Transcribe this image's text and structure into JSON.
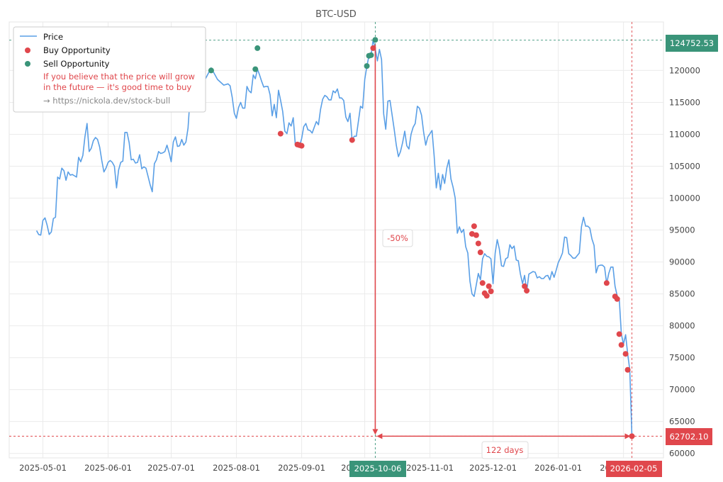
{
  "chart_data": {
    "type": "line",
    "title": "BTC-USD",
    "x_ticks": [
      "2025-05-01",
      "2025-06-01",
      "2025-07-01",
      "2025-08-01",
      "2025-09-01",
      "2025-10-01",
      "2025-11-01",
      "2025-12-01",
      "2026-01-01",
      "2026-02-01"
    ],
    "y_ticks": [
      60000,
      65000,
      70000,
      75000,
      80000,
      85000,
      90000,
      95000,
      100000,
      105000,
      110000,
      115000,
      120000
    ],
    "y_range": [
      59300,
      127600
    ],
    "x_range": [
      "2025-04-15",
      "2026-02-20"
    ],
    "grid": true,
    "legend_position": "top-left",
    "colors": {
      "price": "#5a9fe6",
      "buy": "#e0474c",
      "sell": "#3a9479"
    },
    "legend": {
      "price": "Price",
      "buy": "Buy Opportunity",
      "sell": "Sell Opportunity",
      "note_line1": "If you believe that the price will grow",
      "note_line2": "in the future — it's good time to buy",
      "link": "→ https://nickola.dev/stock-bull"
    },
    "series": [
      {
        "name": "Price",
        "x": [
          "2025-04-28",
          "2025-04-29",
          "2025-04-30",
          "2025-05-01",
          "2025-05-02",
          "2025-05-03",
          "2025-05-04",
          "2025-05-05",
          "2025-05-06",
          "2025-05-07",
          "2025-05-08",
          "2025-05-09",
          "2025-05-10",
          "2025-05-11",
          "2025-05-12",
          "2025-05-13",
          "2025-05-14",
          "2025-05-15",
          "2025-05-16",
          "2025-05-17",
          "2025-05-18",
          "2025-05-19",
          "2025-05-20",
          "2025-05-21",
          "2025-05-22",
          "2025-05-23",
          "2025-05-24",
          "2025-05-25",
          "2025-05-26",
          "2025-05-27",
          "2025-05-28",
          "2025-05-29",
          "2025-05-30",
          "2025-05-31",
          "2025-06-01",
          "2025-06-02",
          "2025-06-03",
          "2025-06-04",
          "2025-06-05",
          "2025-06-06",
          "2025-06-07",
          "2025-06-08",
          "2025-06-09",
          "2025-06-10",
          "2025-06-11",
          "2025-06-12",
          "2025-06-13",
          "2025-06-14",
          "2025-06-15",
          "2025-06-16",
          "2025-06-17",
          "2025-06-18",
          "2025-06-19",
          "2025-06-20",
          "2025-06-21",
          "2025-06-22",
          "2025-06-23",
          "2025-06-24",
          "2025-06-25",
          "2025-06-26",
          "2025-06-27",
          "2025-06-28",
          "2025-06-29",
          "2025-06-30",
          "2025-07-01",
          "2025-07-02",
          "2025-07-03",
          "2025-07-04",
          "2025-07-05",
          "2025-07-06",
          "2025-07-07",
          "2025-07-08",
          "2025-07-09",
          "2025-07-10",
          "2025-07-11",
          "2025-07-14",
          "2025-07-17",
          "2025-07-20",
          "2025-07-23",
          "2025-07-26",
          "2025-07-28",
          "2025-07-29",
          "2025-07-30",
          "2025-07-31",
          "2025-08-01",
          "2025-08-02",
          "2025-08-03",
          "2025-08-04",
          "2025-08-05",
          "2025-08-06",
          "2025-08-07",
          "2025-08-08",
          "2025-08-09",
          "2025-08-10",
          "2025-08-11",
          "2025-08-12",
          "2025-08-13",
          "2025-08-14",
          "2025-08-15",
          "2025-08-16",
          "2025-08-17",
          "2025-08-18",
          "2025-08-19",
          "2025-08-20",
          "2025-08-21",
          "2025-08-22",
          "2025-08-23",
          "2025-08-24",
          "2025-08-25",
          "2025-08-26",
          "2025-08-27",
          "2025-08-28",
          "2025-08-29",
          "2025-08-30",
          "2025-08-31",
          "2025-09-01",
          "2025-09-02",
          "2025-09-03",
          "2025-09-04",
          "2025-09-05",
          "2025-09-06",
          "2025-09-07",
          "2025-09-08",
          "2025-09-09",
          "2025-09-10",
          "2025-09-11",
          "2025-09-12",
          "2025-09-13",
          "2025-09-14",
          "2025-09-15",
          "2025-09-16",
          "2025-09-17",
          "2025-09-18",
          "2025-09-19",
          "2025-09-20",
          "2025-09-21",
          "2025-09-22",
          "2025-09-23",
          "2025-09-24",
          "2025-09-25",
          "2025-09-26",
          "2025-09-27",
          "2025-09-28",
          "2025-09-29",
          "2025-09-30",
          "2025-10-01",
          "2025-10-02",
          "2025-10-03",
          "2025-10-04",
          "2025-10-05",
          "2025-10-06",
          "2025-10-07",
          "2025-10-08",
          "2025-10-09",
          "2025-10-10",
          "2025-10-11",
          "2025-10-12",
          "2025-10-13",
          "2025-10-14",
          "2025-10-15",
          "2025-10-16",
          "2025-10-17",
          "2025-10-18",
          "2025-10-19",
          "2025-10-20",
          "2025-10-21",
          "2025-10-22",
          "2025-10-23",
          "2025-10-24",
          "2025-10-25",
          "2025-10-26",
          "2025-10-27",
          "2025-10-28",
          "2025-10-29",
          "2025-10-30",
          "2025-10-31",
          "2025-11-01",
          "2025-11-02",
          "2025-11-03",
          "2025-11-04",
          "2025-11-05",
          "2025-11-06",
          "2025-11-07",
          "2025-11-08",
          "2025-11-09",
          "2025-11-10",
          "2025-11-11",
          "2025-11-12",
          "2025-11-13",
          "2025-11-14",
          "2025-11-15",
          "2025-11-16",
          "2025-11-17",
          "2025-11-18",
          "2025-11-19",
          "2025-11-20",
          "2025-11-21",
          "2025-11-22",
          "2025-11-23",
          "2025-11-24",
          "2025-11-25",
          "2025-11-26",
          "2025-11-27",
          "2025-11-28",
          "2025-11-29",
          "2025-11-30",
          "2025-12-01",
          "2025-12-02",
          "2025-12-03",
          "2025-12-04",
          "2025-12-05",
          "2025-12-06",
          "2025-12-07",
          "2025-12-08",
          "2025-12-09",
          "2025-12-10",
          "2025-12-11",
          "2025-12-12",
          "2025-12-13",
          "2025-12-14",
          "2025-12-15",
          "2025-12-16",
          "2025-12-17",
          "2025-12-18",
          "2025-12-19",
          "2025-12-20",
          "2025-12-21",
          "2025-12-22",
          "2025-12-23",
          "2025-12-24",
          "2025-12-25",
          "2025-12-26",
          "2025-12-27",
          "2025-12-28",
          "2025-12-29",
          "2025-12-30",
          "2025-12-31",
          "2026-01-01",
          "2026-01-02",
          "2026-01-03",
          "2026-01-04",
          "2026-01-05",
          "2026-01-06",
          "2026-01-07",
          "2026-01-08",
          "2026-01-09",
          "2026-01-10",
          "2026-01-11",
          "2026-01-12",
          "2026-01-13",
          "2026-01-14",
          "2026-01-15",
          "2026-01-16",
          "2026-01-17",
          "2026-01-18",
          "2026-01-19",
          "2026-01-20",
          "2026-01-21",
          "2026-01-22",
          "2026-01-23",
          "2026-01-24",
          "2026-01-25",
          "2026-01-26",
          "2026-01-27",
          "2026-01-28",
          "2026-01-29",
          "2026-01-30",
          "2026-01-31",
          "2026-02-01",
          "2026-02-02",
          "2026-02-03",
          "2026-02-04",
          "2026-02-05"
        ],
        "y": [
          94900,
          94300,
          94200,
          96500,
          96900,
          95800,
          94300,
          94700,
          96800,
          97000,
          103300,
          103000,
          104700,
          104300,
          102800,
          104100,
          103600,
          103700,
          103500,
          103300,
          106400,
          105700,
          106700,
          109600,
          111700,
          107300,
          107800,
          109000,
          109500,
          109200,
          108000,
          105900,
          104100,
          104700,
          105600,
          105900,
          105600,
          105000,
          101600,
          104400,
          105600,
          105800,
          110300,
          110300,
          108700,
          106000,
          106100,
          105500,
          105600,
          106800,
          104600,
          104900,
          104700,
          103400,
          102100,
          101000,
          105400,
          106000,
          107300,
          107000,
          107100,
          107300,
          108300,
          107100,
          105700,
          108800,
          109600,
          108100,
          108200,
          109200,
          108300,
          108800,
          111000,
          115900,
          117500,
          119800,
          118500,
          120400,
          118600,
          117700,
          117900,
          117600,
          115800,
          113300,
          112500,
          114200,
          115000,
          114100,
          114100,
          117500,
          116800,
          116500,
          119300,
          118700,
          120200,
          119300,
          118300,
          117400,
          117500,
          117500,
          116200,
          112900,
          114700,
          112600,
          116900,
          115300,
          113600,
          110500,
          110100,
          111800,
          111300,
          112600,
          108400,
          108300,
          108200,
          109300,
          111200,
          111700,
          110700,
          110600,
          110200,
          111100,
          112000,
          111500,
          113900,
          115500,
          116100,
          115900,
          115400,
          115400,
          116800,
          116500,
          117100,
          115700,
          115700,
          115300,
          112700,
          112000,
          113300,
          109000,
          109700,
          109700,
          112100,
          114400,
          114100,
          118600,
          120600,
          122300,
          122400,
          124800,
          123400,
          121500,
          123300,
          121700,
          113200,
          110800,
          115200,
          115300,
          113100,
          110800,
          108300,
          106500,
          107300,
          108700,
          110500,
          108200,
          107700,
          110000,
          111100,
          111700,
          114400,
          114100,
          113000,
          110300,
          108300,
          109600,
          110100,
          110600,
          106600,
          101600,
          103900,
          101300,
          103700,
          102300,
          104700,
          106000,
          103000,
          101700,
          100000,
          94500,
          95500,
          94600,
          95100,
          92400,
          91400,
          87000,
          85000,
          84600,
          86400,
          88200,
          87200,
          90500,
          91300,
          90900,
          90800,
          90500,
          86600,
          91400,
          93500,
          92000,
          89400,
          89300,
          90500,
          90700,
          92700,
          92100,
          92500,
          90300,
          90200,
          88100,
          86600,
          87900,
          85400,
          88100,
          88300,
          88500,
          88400,
          87500,
          87700,
          87400,
          87400,
          87800,
          87900,
          87200,
          88500,
          87600,
          88700,
          89900,
          90600,
          91400,
          93900,
          93800,
          91300,
          91000,
          90600,
          90600,
          91000,
          91400,
          95500,
          97000,
          95600,
          95600,
          95300,
          93600,
          92600,
          88300,
          89400,
          89500,
          89500,
          89200,
          86600,
          88200,
          89200,
          89200,
          86200,
          84700,
          84100,
          78700,
          77100,
          78600,
          75600,
          73100,
          62700
        ]
      },
      {
        "name": "Buy Opportunity",
        "x": [
          "2025-08-22",
          "2025-08-30",
          "2025-08-31",
          "2025-09-01",
          "2025-09-25",
          "2025-10-05",
          "2025-11-21",
          "2025-11-22",
          "2025-11-23",
          "2025-11-24",
          "2025-11-25",
          "2025-11-26",
          "2025-11-27",
          "2025-11-28",
          "2025-11-29",
          "2025-11-30",
          "2025-12-16",
          "2025-12-17",
          "2026-01-24",
          "2026-01-28",
          "2026-01-29",
          "2026-01-30",
          "2026-01-31",
          "2026-02-02",
          "2026-02-03",
          "2026-02-05"
        ],
        "y": [
          110100,
          108400,
          108300,
          108200,
          109100,
          123500,
          94400,
          95600,
          94200,
          92900,
          91500,
          86700,
          85100,
          84700,
          86200,
          85400,
          86200,
          85500,
          86700,
          84600,
          84200,
          78700,
          77000,
          75600,
          73100,
          62700
        ]
      },
      {
        "name": "Sell Opportunity",
        "x": [
          "2025-07-20",
          "2025-08-10",
          "2025-08-11",
          "2025-10-02",
          "2025-10-03",
          "2025-10-04",
          "2025-10-06"
        ],
        "y": [
          120000,
          120200,
          123500,
          120700,
          122300,
          122400,
          124800
        ]
      }
    ],
    "annotations": {
      "max_price": "124752.53",
      "min_price": "62702.10",
      "max_date": "2025-10-06",
      "min_date": "2026-02-05",
      "drop": "-50%",
      "span": "122 days",
      "colors": {
        "max": "#3a9479",
        "min": "#e0474c"
      }
    }
  }
}
